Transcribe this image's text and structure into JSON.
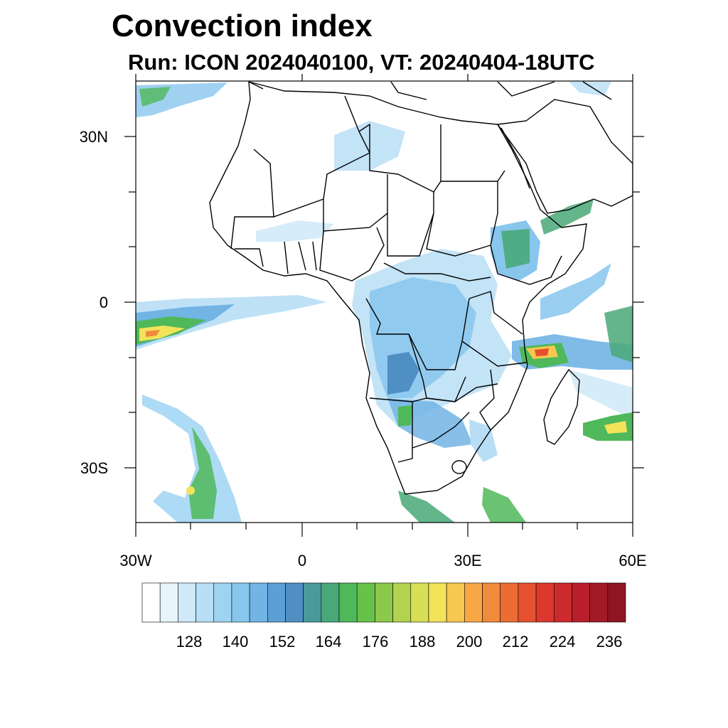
{
  "title": "Convection index",
  "subtitle": "Run: ICON 2024040100,  VT: 20240404-18UTC",
  "map": {
    "region": "Africa",
    "lon_range": [
      -30,
      60
    ],
    "lat_range": [
      -40,
      40
    ],
    "lat_labels": [
      "30N",
      "0",
      "30S"
    ],
    "lon_labels": [
      "30W",
      "0",
      "30E",
      "60E"
    ],
    "coast_color": "#000000",
    "ocean_color": "#ffffff"
  },
  "colorbar": {
    "levels": [
      "128",
      "140",
      "152",
      "164",
      "176",
      "188",
      "200",
      "212",
      "224",
      "236"
    ],
    "colors": [
      "#ffffff",
      "#e8f4fb",
      "#cfe9f8",
      "#b8def5",
      "#9fd3f2",
      "#88c6ed",
      "#72b4e4",
      "#5c9fd6",
      "#4f8fc4",
      "#4a9a9a",
      "#4aa878",
      "#4fb85a",
      "#66c24a",
      "#8cc84a",
      "#b3d24e",
      "#d7df55",
      "#f2e35a",
      "#f7c750",
      "#f7a845",
      "#f28a3c",
      "#ec6c34",
      "#e5512f",
      "#dc382d",
      "#cc2a2d",
      "#b81f2b",
      "#a31a27",
      "#8e1521"
    ]
  }
}
